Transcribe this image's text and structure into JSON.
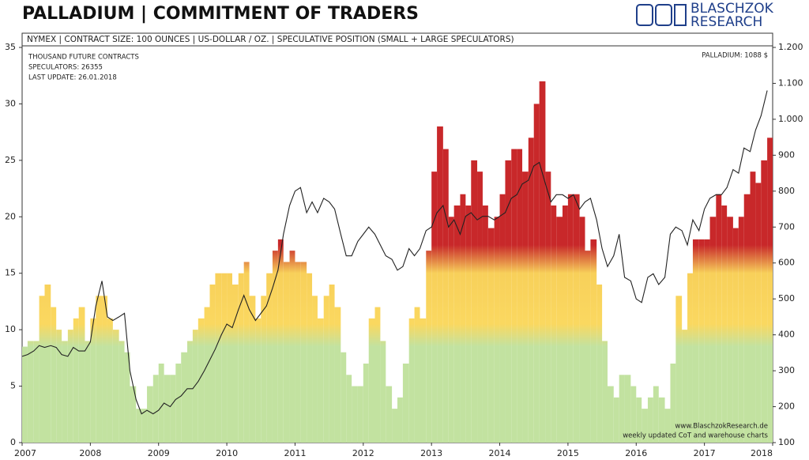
{
  "chart_data": {
    "type": "bar_line",
    "title": "PALLADIUM  |  COMMITMENT OF TRADERS",
    "subtitle": "NYMEX  |  CONTRACT SIZE: 100 OUNCES  |  US-DOLLAR / OZ.  |  SPECULATIVE POSITION (SMALL + LARGE SPECULATORS)",
    "logo": [
      "BLASCHZOK",
      "RESEARCH"
    ],
    "annotations": [
      "THOUSAND  FUTURE  CONTRACTS",
      "SPECULATORS:   26355",
      "LAST UPDATE:  26.01.2018",
      "PALLADIUM:  1088  $",
      "www.BlaschzokResearch.de",
      "weekly updated CoT and warehouse charts"
    ],
    "x": [
      2007,
      2007.08,
      2007.17,
      2007.25,
      2007.33,
      2007.42,
      2007.5,
      2007.58,
      2007.67,
      2007.75,
      2007.83,
      2007.92,
      2008,
      2008.08,
      2008.17,
      2008.25,
      2008.33,
      2008.42,
      2008.5,
      2008.58,
      2008.67,
      2008.75,
      2008.83,
      2008.92,
      2009,
      2009.08,
      2009.17,
      2009.25,
      2009.33,
      2009.42,
      2009.5,
      2009.58,
      2009.67,
      2009.75,
      2009.83,
      2009.92,
      2010,
      2010.08,
      2010.17,
      2010.25,
      2010.33,
      2010.42,
      2010.5,
      2010.58,
      2010.67,
      2010.75,
      2010.83,
      2010.92,
      2011,
      2011.08,
      2011.17,
      2011.25,
      2011.33,
      2011.42,
      2011.5,
      2011.58,
      2011.67,
      2011.75,
      2011.83,
      2011.92,
      2012,
      2012.08,
      2012.17,
      2012.25,
      2012.33,
      2012.42,
      2012.5,
      2012.58,
      2012.67,
      2012.75,
      2012.83,
      2012.92,
      2013,
      2013.08,
      2013.17,
      2013.25,
      2013.33,
      2013.42,
      2013.5,
      2013.58,
      2013.67,
      2013.75,
      2013.83,
      2013.92,
      2014,
      2014.08,
      2014.17,
      2014.25,
      2014.33,
      2014.42,
      2014.5,
      2014.58,
      2014.67,
      2014.75,
      2014.83,
      2014.92,
      2015,
      2015.08,
      2015.17,
      2015.25,
      2015.33,
      2015.42,
      2015.5,
      2015.58,
      2015.67,
      2015.75,
      2015.83,
      2015.92,
      2016,
      2016.08,
      2016.17,
      2016.25,
      2016.33,
      2016.42,
      2016.5,
      2016.58,
      2016.67,
      2016.75,
      2016.83,
      2016.92,
      2017,
      2017.08,
      2017.17,
      2017.25,
      2017.33,
      2017.42,
      2017.5,
      2017.58,
      2017.67,
      2017.75,
      2017.83,
      2017.92
    ],
    "series": [
      {
        "color_scale": [
          {
            "value": 8.5,
            "color": "#c2e2a0"
          },
          {
            "value": 10.5,
            "color": "#fad860"
          },
          {
            "value": 15,
            "color": "#f8d05a"
          },
          {
            "value": 17.5,
            "color": "#c8282a"
          }
        ],
        "values": [
          8.5,
          9,
          9,
          13,
          14,
          12,
          10,
          9,
          10,
          11,
          12,
          9,
          11,
          13,
          13,
          11,
          10,
          9,
          8,
          5,
          3,
          3,
          5,
          6,
          7,
          6,
          6,
          7,
          8,
          9,
          10,
          11,
          12,
          14,
          15,
          15,
          15,
          14,
          15,
          16,
          13,
          11,
          13,
          15,
          17,
          18,
          16,
          17,
          16,
          16,
          15,
          13,
          11,
          13,
          14,
          12,
          8,
          6,
          5,
          5,
          7,
          11,
          12,
          9,
          5,
          3,
          4,
          7,
          11,
          12,
          11,
          17,
          24,
          28,
          26,
          20,
          21,
          22,
          21,
          25,
          24,
          21,
          19,
          20,
          22,
          25,
          26,
          26,
          24,
          27,
          30,
          32,
          24,
          21,
          20,
          21,
          22,
          22,
          20,
          17,
          18,
          14,
          9,
          5,
          4,
          6,
          6,
          5,
          4,
          3,
          4,
          5,
          4,
          3,
          7,
          13,
          10,
          15,
          18,
          18,
          18,
          20,
          22,
          21,
          20,
          19,
          20,
          22,
          24,
          23,
          25,
          27
        ]
      },
      {
        "axis": "y2",
        "color": "#222222",
        "values": [
          340,
          345,
          355,
          370,
          365,
          370,
          365,
          345,
          340,
          365,
          355,
          355,
          380,
          480,
          550,
          450,
          440,
          450,
          460,
          300,
          220,
          180,
          190,
          180,
          190,
          210,
          200,
          220,
          230,
          250,
          250,
          270,
          300,
          330,
          360,
          400,
          430,
          420,
          470,
          510,
          470,
          440,
          460,
          480,
          530,
          580,
          680,
          760,
          800,
          810,
          740,
          770,
          740,
          780,
          770,
          750,
          680,
          620,
          620,
          660,
          680,
          700,
          680,
          650,
          620,
          610,
          580,
          590,
          640,
          620,
          640,
          690,
          700,
          740,
          760,
          700,
          720,
          680,
          730,
          740,
          720,
          730,
          730,
          720,
          730,
          740,
          780,
          790,
          820,
          830,
          870,
          880,
          820,
          770,
          790,
          790,
          780,
          790,
          750,
          770,
          780,
          720,
          640,
          590,
          620,
          680,
          560,
          550,
          500,
          490,
          560,
          570,
          540,
          560,
          680,
          700,
          690,
          650,
          720,
          690,
          750,
          780,
          790,
          790,
          810,
          860,
          850,
          920,
          910,
          970,
          1010,
          1080
        ]
      }
    ],
    "xlim": [
      2007,
      2018
    ],
    "xticks": [
      2007,
      2008,
      2009,
      2010,
      2011,
      2012,
      2013,
      2014,
      2015,
      2016,
      2017,
      2018
    ],
    "ylim": [
      0,
      35
    ],
    "yticks": [
      0,
      5,
      10,
      15,
      20,
      25,
      30,
      35
    ],
    "y2lim": [
      100,
      1200
    ],
    "y2ticks": [
      100,
      200,
      300,
      400,
      500,
      600,
      700,
      800,
      900,
      {
        "value": 1000,
        "label": "1.000"
      },
      {
        "value": 1100,
        "label": "1.100"
      },
      {
        "value": 1200,
        "label": "1.200"
      }
    ],
    "grid": false
  }
}
